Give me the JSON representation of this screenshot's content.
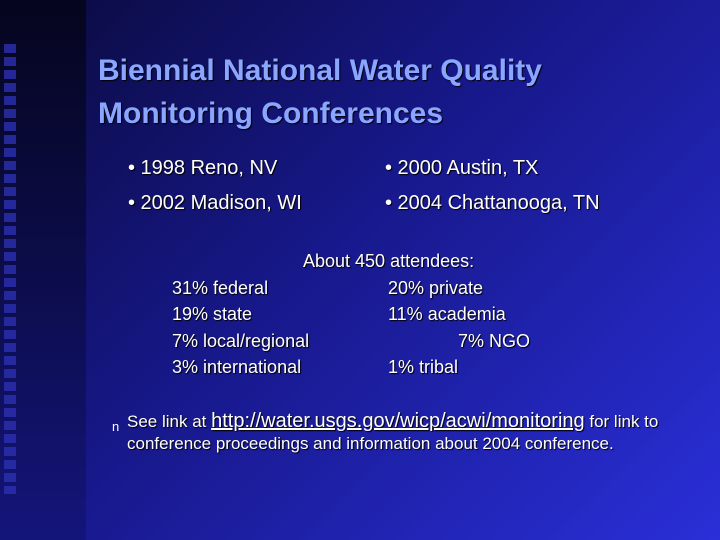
{
  "title": [
    "Biennial National Water Quality",
    "Monitoring Conferences"
  ],
  "conferences": [
    [
      "• 1998 Reno, NV",
      "• 2002 Madison, WI"
    ],
    [
      "• 2000 Austin, TX",
      "• 2004 Chattanooga, TN"
    ]
  ],
  "attendees": {
    "heading": "About 450 attendees:",
    "left": [
      "31% federal",
      "19% state",
      "7% local/regional",
      "3% international"
    ],
    "right": [
      "20% private",
      "11% academia",
      "7% NGO",
      "1% tribal"
    ]
  },
  "note": {
    "marker": "n",
    "before": "See link at",
    "link": "http://water.usgs.gov/wicp/acwi/monitoring",
    "after": "for link to conference proceedings and information about 2004 conference."
  }
}
